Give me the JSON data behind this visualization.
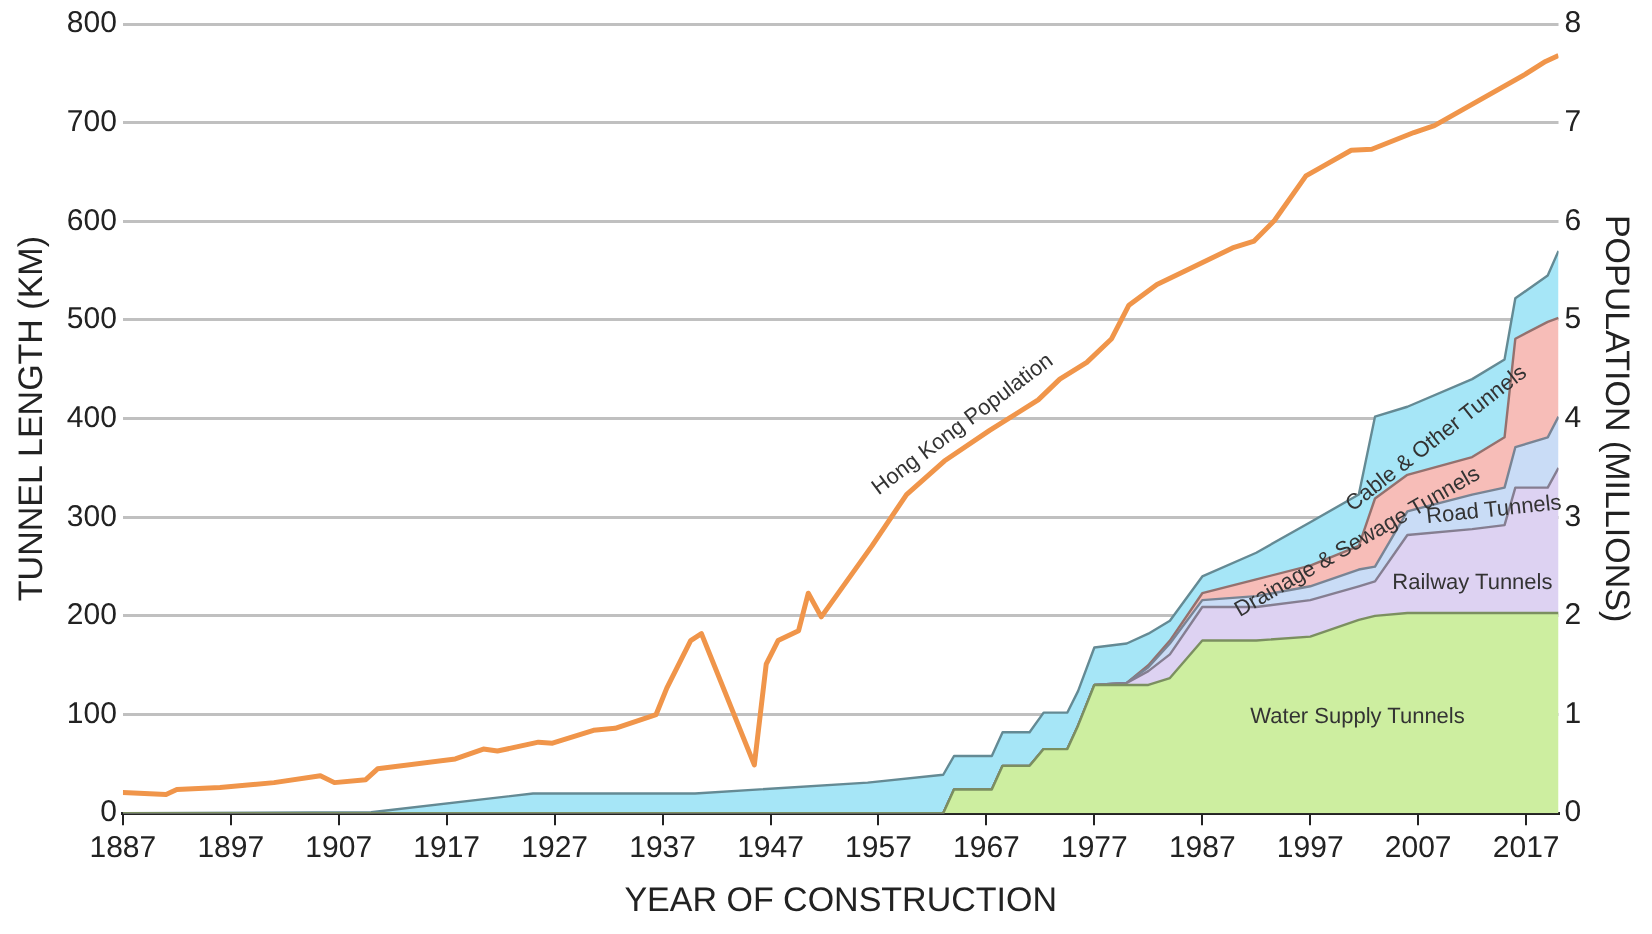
{
  "chart_data": {
    "type": "area",
    "stacked": true,
    "xlabel": "YEAR OF CONSTRUCTION",
    "ylabel": "TUNNEL LENGTH (KM)",
    "y2label": "POPULATION (MILLIONS)",
    "x": [
      1887,
      1910,
      1925,
      1940,
      1956,
      1963,
      1964,
      1967.5,
      1968.5,
      1971,
      1972.3,
      1974.5,
      1975.5,
      1977,
      1980,
      1982,
      1984,
      1987,
      1992,
      1997,
      2001.5,
      2003,
      2006,
      2012,
      2015,
      2016,
      2019,
      2020
    ],
    "series": [
      {
        "name": "Water Supply Tunnels",
        "color": "#cdeea0",
        "values": [
          0,
          0,
          0,
          0,
          0,
          0,
          24,
          24,
          48,
          48,
          65,
          65,
          89,
          130,
          130,
          130,
          137,
          175,
          175,
          179,
          196,
          200,
          203,
          203,
          203,
          203,
          203,
          203
        ]
      },
      {
        "name": "Railway Tunnels",
        "color": "#ddd2f2",
        "values": [
          0,
          0,
          0,
          0,
          0,
          0,
          0,
          0,
          0,
          0,
          0,
          0,
          0,
          0,
          2,
          14,
          24,
          34,
          34,
          37,
          34,
          35,
          79,
          85,
          89,
          127,
          127,
          147
        ]
      },
      {
        "name": "Road Tunnels",
        "color": "#c9dcf6",
        "values": [
          0,
          0,
          0,
          0,
          0,
          0,
          0,
          0,
          0,
          0,
          0,
          0,
          0,
          0,
          0,
          4,
          11,
          7,
          11,
          14,
          17,
          15,
          24,
          35,
          38,
          41,
          51,
          52
        ]
      },
      {
        "name": "Drainage & Sewage Tunnels",
        "color": "#f7bdb8",
        "values": [
          0,
          0,
          0,
          0,
          0,
          0,
          0,
          0,
          0,
          0,
          0,
          0,
          0,
          0,
          0,
          2,
          3,
          7,
          17,
          21,
          24,
          69,
          37,
          38,
          51,
          110,
          117,
          100
        ]
      },
      {
        "name": "Cable & Other Tunnels",
        "color": "#a6e6f7",
        "values": [
          0,
          1,
          20,
          20,
          31,
          39,
          34,
          34,
          34,
          34,
          37,
          37,
          35,
          38,
          40,
          32,
          20,
          17,
          27,
          44,
          52,
          83,
          69,
          79,
          79,
          41,
          47,
          68
        ]
      },
      {
        "name": "Hong Kong Population",
        "type": "line",
        "axis": "y2",
        "color": "#f0954a",
        "x": [
          1887,
          1891,
          1892,
          1896,
          1901,
          1905.3,
          1906.6,
          1909.5,
          1910.6,
          1917.8,
          1920.4,
          1921.7,
          1925.5,
          1926.8,
          1930.6,
          1932.6,
          1936.4,
          1937.4,
          1939.6,
          1940.6,
          1945.5,
          1946.6,
          1947.7,
          1949.6,
          1950.5,
          1951.7,
          1956.4,
          1959.6,
          1963.1,
          1967.3,
          1971.8,
          1973.8,
          1976.3,
          1978.6,
          1980.2,
          1982.8,
          1985.3,
          1989.8,
          1991.8,
          1993.7,
          1996.6,
          1998.2,
          2000.8,
          2002.7,
          2006.6,
          2008.5,
          2016.9,
          2018.8,
          2020
        ],
        "values": [
          0.21,
          0.19,
          0.24,
          0.26,
          0.31,
          0.38,
          0.31,
          0.34,
          0.45,
          0.55,
          0.65,
          0.63,
          0.72,
          0.71,
          0.84,
          0.86,
          1.0,
          1.27,
          1.75,
          1.82,
          0.49,
          1.51,
          1.75,
          1.85,
          2.23,
          1.99,
          2.71,
          3.23,
          3.57,
          3.88,
          4.19,
          4.4,
          4.57,
          4.81,
          5.15,
          5.36,
          5.49,
          5.73,
          5.8,
          6.01,
          6.46,
          6.56,
          6.72,
          6.73,
          6.9,
          6.97,
          7.49,
          7.62,
          7.68
        ]
      }
    ],
    "xlim": [
      1887,
      2020
    ],
    "xticks": [
      1887,
      1897,
      1907,
      1917,
      1927,
      1937,
      1947,
      1957,
      1967,
      1977,
      1987,
      1997,
      2007,
      2017
    ],
    "ylim": [
      0,
      800
    ],
    "yticks": [
      0,
      100,
      200,
      300,
      400,
      500,
      600,
      700,
      800
    ],
    "y2lim": [
      0,
      8
    ],
    "y2ticks": [
      0,
      1,
      2,
      3,
      4,
      5,
      6,
      7,
      8
    ],
    "grid": "y",
    "legend": false,
    "marker": "none"
  }
}
